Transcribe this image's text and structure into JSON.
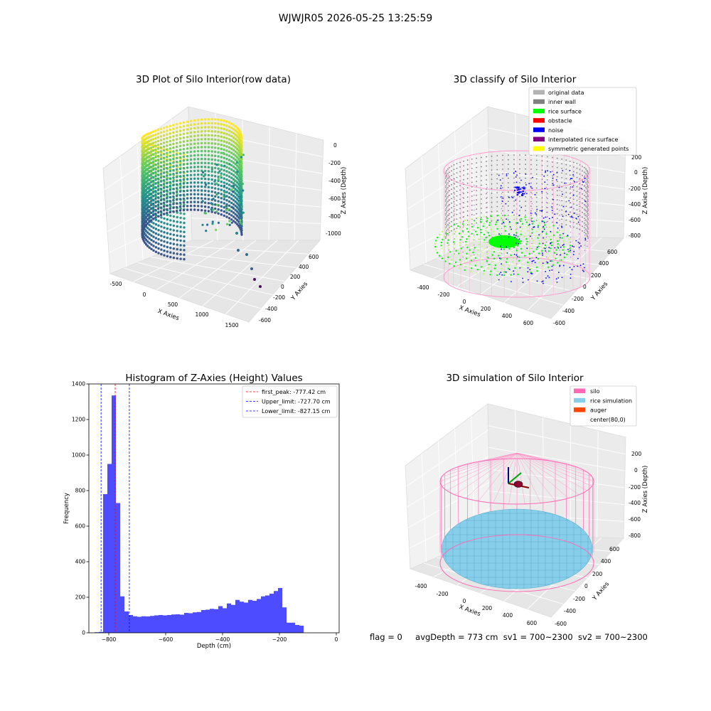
{
  "figure": {
    "suptitle": "WJWJR05 2026-05-25 13:25:59",
    "status": {
      "flag": "flag = 0",
      "avg_depth": "avgDepth = 773 cm",
      "sv1": "sv1 = 700~2300",
      "sv2": "sv2 = 700~2300"
    }
  },
  "colors": {
    "original_data": "#b3b3b3",
    "inner_wall": "#808080",
    "rice_surface": "#00ff00",
    "obstacle": "#ff0000",
    "noise": "#0000ff",
    "interpolated_rice_surface": "#800080",
    "symmetric_generated_points": "#ffff00",
    "silo": "#ff69b4",
    "rice_simulation": "#87ceeb",
    "auger": "#ff4500",
    "histogram_bar": "#4d4dff"
  },
  "chart_data": [
    {
      "type": "scatter",
      "title": "3D Plot of Silo Interior(row data)",
      "xlabel": "X Axies",
      "ylabel": "Y Axies",
      "zlabel": "Z Axies (Depth)",
      "xticks": [
        "-500",
        "0",
        "500",
        "1000",
        "1500"
      ],
      "yticks": [
        "-600",
        "-400",
        "-200",
        "0",
        "200",
        "400",
        "600"
      ],
      "zticks": [
        "0",
        "-200",
        "-400",
        "-600",
        "-800",
        "-1000"
      ],
      "colormap": "viridis"
    },
    {
      "type": "scatter",
      "title": "3D classify of Silo Interior",
      "xlabel": "X Axies",
      "ylabel": "Y Axies",
      "zlabel": "Z Axies (Depth)",
      "xticks": [
        "-400",
        "-200",
        "0",
        "200",
        "400",
        "600"
      ],
      "yticks": [
        "-600",
        "-400",
        "-200",
        "0",
        "200",
        "400",
        "600"
      ],
      "zticks": [
        "200",
        "0",
        "-200",
        "-400",
        "-600",
        "-800"
      ],
      "legend": [
        "original data",
        "inner wall",
        "rice surface",
        "obstacle",
        "noise",
        "interpolated rice surface",
        "symmetric generated points"
      ],
      "legend_loc": "upper-right"
    },
    {
      "type": "bar",
      "title": "Histogram of Z-Axies (Height) Values",
      "xlabel": "Depth (cm)",
      "ylabel": "Frequency",
      "xlim": [
        -870,
        10
      ],
      "ylim": [
        0,
        1400
      ],
      "xticks": [
        -800,
        -600,
        -400,
        -200,
        0
      ],
      "yticks": [
        0,
        200,
        400,
        600,
        800,
        1000,
        1200,
        1400
      ],
      "bin_edges": [
        -850,
        -835,
        -820,
        -805,
        -790,
        -775,
        -760,
        -745,
        -730,
        -715,
        -700,
        -685,
        -670,
        -655,
        -640,
        -625,
        -610,
        -595,
        -580,
        -565,
        -550,
        -535,
        -520,
        -505,
        -490,
        -475,
        -460,
        -445,
        -430,
        -415,
        -400,
        -385,
        -370,
        -355,
        -340,
        -325,
        -310,
        -295,
        -280,
        -265,
        -250,
        -235,
        -220,
        -205,
        -190,
        -175,
        -160,
        -145,
        -130,
        -115,
        -100,
        -85,
        -70,
        -55,
        -40,
        -25,
        -10
      ],
      "values": [
        3,
        5,
        780,
        950,
        1335,
        730,
        205,
        120,
        100,
        93,
        90,
        93,
        92,
        95,
        98,
        100,
        98,
        100,
        103,
        104,
        102,
        112,
        110,
        115,
        117,
        128,
        130,
        135,
        133,
        150,
        138,
        165,
        157,
        185,
        175,
        170,
        185,
        180,
        190,
        205,
        210,
        220,
        235,
        252,
        143,
        57,
        57,
        44,
        40,
        0,
        0,
        0,
        0,
        0,
        0,
        0
      ],
      "vlines": [
        {
          "label": "first_peak: -777.42 cm",
          "x": -777.42,
          "color": "#ff0000"
        },
        {
          "label": "Upper_limit: -727.70 cm",
          "x": -727.7,
          "color": "#0000ff"
        },
        {
          "label": "Lower_limit: -827.15 cm",
          "x": -827.15,
          "color": "#0000ff"
        }
      ],
      "legend_loc": "upper-right"
    },
    {
      "type": "surface",
      "title": "3D simulation of Silo Interior",
      "xlabel": "X Axies",
      "ylabel": "Y Axies",
      "zlabel": "Z Axies (Depth)",
      "xticks": [
        "-400",
        "-200",
        "0",
        "200",
        "400",
        "600"
      ],
      "yticks": [
        "-600",
        "-400",
        "-200",
        "0",
        "200",
        "400",
        "600"
      ],
      "zticks": [
        "200",
        "0",
        "-200",
        "-400",
        "-600",
        "-800"
      ],
      "legend": [
        "silo",
        "rice simulation",
        "auger",
        "center(80,0)"
      ],
      "legend_loc": "upper-right"
    }
  ]
}
